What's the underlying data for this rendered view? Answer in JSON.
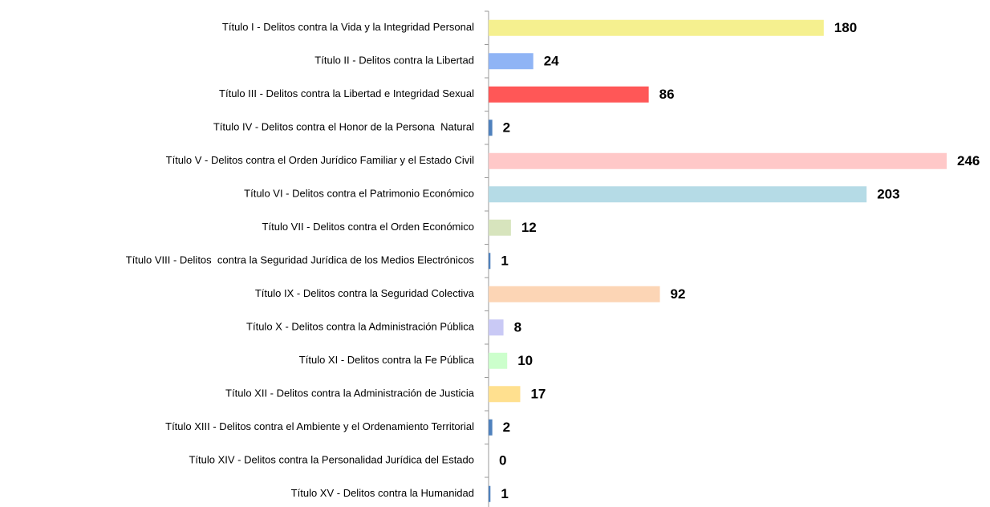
{
  "chart_data": {
    "type": "barh",
    "categories": [
      "Título I - Delitos contra la Vida y la Integridad Personal",
      "Título II - Delitos contra la Libertad",
      "Título III - Delitos contra la Libertad e Integridad Sexual",
      "Título IV - Delitos contra el Honor de la Persona  Natural",
      "Título V - Delitos contra el Orden Jurídico Familiar y el Estado Civil",
      "Título VI - Delitos contra el Patrimonio Económico",
      "Título VII - Delitos contra el Orden Económico",
      "Título VIII - Delitos  contra la Seguridad Jurídica de los Medios Electrónicos",
      "Título IX - Delitos contra la Seguridad Colectiva",
      "Título X - Delitos contra la Administración Pública",
      "Título XI - Delitos contra la Fe Pública",
      "Título XII - Delitos contra la Administración de Justicia",
      "Título XIII - Delitos contra el Ambiente y el Ordenamiento Territorial",
      "Título XIV - Delitos contra la Personalidad Jurídica del Estado",
      "Título XV - Delitos contra la Humanidad"
    ],
    "values": [
      180,
      24,
      86,
      2,
      246,
      203,
      12,
      1,
      92,
      8,
      10,
      17,
      2,
      0,
      1
    ],
    "colors": [
      "#f5f08f",
      "#8fb4f5",
      "#ff5757",
      "#4f81bd",
      "#ffc8c8",
      "#b5dbe6",
      "#d7e4bd",
      "#4f81bd",
      "#fcd5b5",
      "#c9c9f5",
      "#ccffcc",
      "#ffe08f",
      "#4f81bd",
      "#4f81bd",
      "#4f81bd"
    ]
  }
}
